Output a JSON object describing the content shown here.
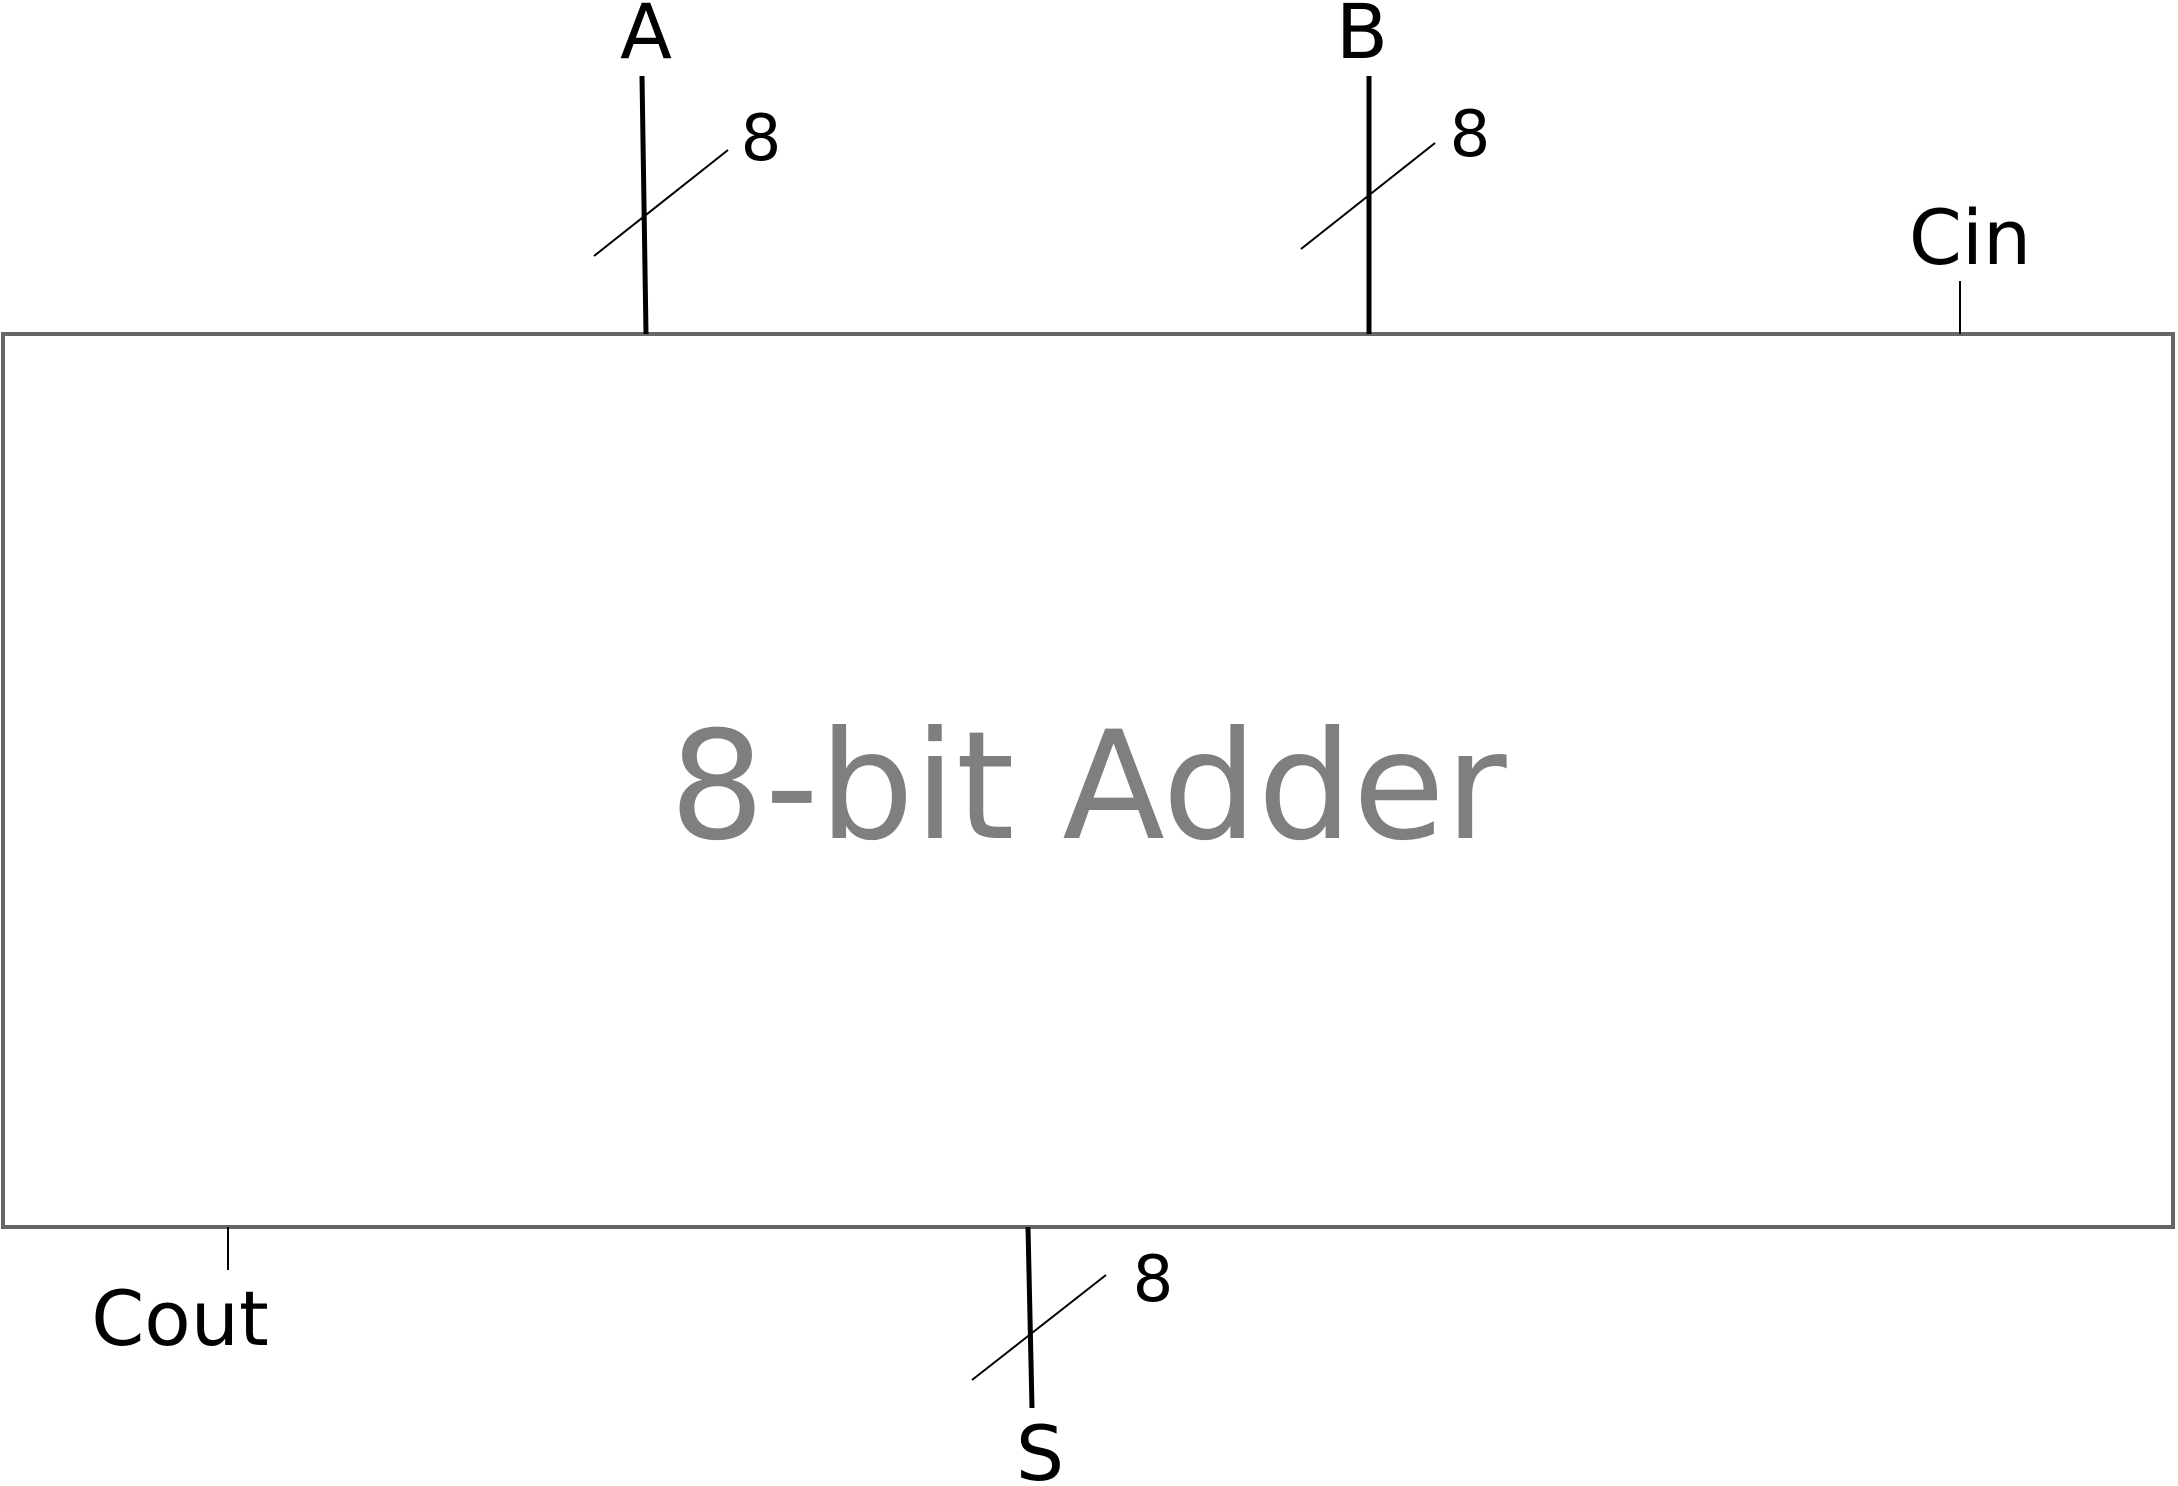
{
  "block": {
    "title": "8-bit Adder",
    "border_color": "#666666",
    "text_color": "#7f7f7f"
  },
  "inputs": {
    "a": {
      "label": "A",
      "width": "8"
    },
    "b": {
      "label": "B",
      "width": "8"
    },
    "cin": {
      "label": "Cin"
    }
  },
  "outputs": {
    "s": {
      "label": "S",
      "width": "8"
    },
    "cout": {
      "label": "Cout"
    }
  },
  "wire_color": "#000000"
}
